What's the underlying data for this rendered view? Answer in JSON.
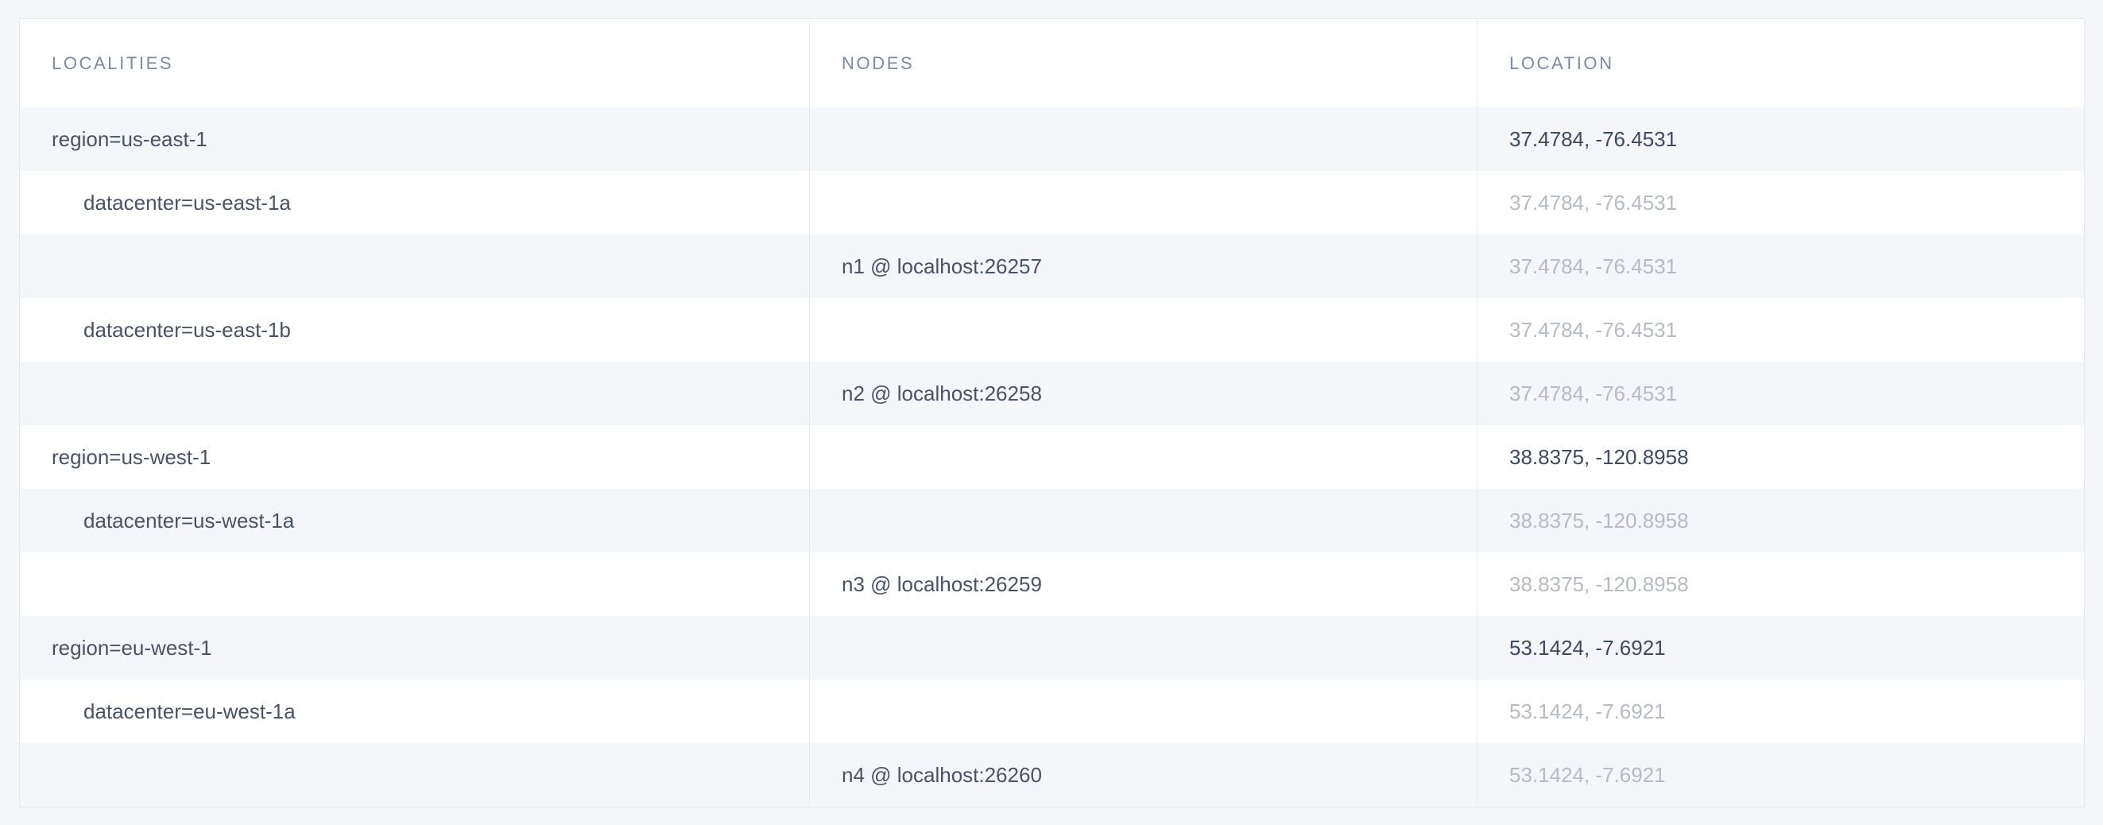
{
  "page": {
    "background": "#f4f6f9"
  },
  "colors": {
    "row_stripe": "#f4f6fa",
    "row_plain": "#ffffff",
    "table_border": "#e4e7ed",
    "column_separator": "#e8eaef",
    "header_text": "#7e89a6",
    "body_text": "#485366",
    "location_dark_text": "#3e4a61",
    "location_muted_text": "#b5bac4"
  },
  "table": {
    "columns": [
      {
        "key": "localities",
        "label": "Localities"
      },
      {
        "key": "nodes",
        "label": "Nodes"
      },
      {
        "key": "location",
        "label": "Location"
      }
    ],
    "rows": [
      {
        "type": "region",
        "locality": "region=us-east-1",
        "node": "",
        "location": "37.4784, -76.4531",
        "location_muted": false
      },
      {
        "type": "datacenter",
        "locality": "datacenter=us-east-1a",
        "node": "",
        "location": "37.4784, -76.4531",
        "location_muted": true
      },
      {
        "type": "node",
        "locality": "",
        "node": "n1 @ localhost:26257",
        "location": "37.4784, -76.4531",
        "location_muted": true
      },
      {
        "type": "datacenter",
        "locality": "datacenter=us-east-1b",
        "node": "",
        "location": "37.4784, -76.4531",
        "location_muted": true
      },
      {
        "type": "node",
        "locality": "",
        "node": "n2 @ localhost:26258",
        "location": "37.4784, -76.4531",
        "location_muted": true
      },
      {
        "type": "region",
        "locality": "region=us-west-1",
        "node": "",
        "location": "38.8375, -120.8958",
        "location_muted": false
      },
      {
        "type": "datacenter",
        "locality": "datacenter=us-west-1a",
        "node": "",
        "location": "38.8375, -120.8958",
        "location_muted": true
      },
      {
        "type": "node",
        "locality": "",
        "node": "n3 @ localhost:26259",
        "location": "38.8375, -120.8958",
        "location_muted": true
      },
      {
        "type": "region",
        "locality": "region=eu-west-1",
        "node": "",
        "location": "53.1424, -7.6921",
        "location_muted": false
      },
      {
        "type": "datacenter",
        "locality": "datacenter=eu-west-1a",
        "node": "",
        "location": "53.1424, -7.6921",
        "location_muted": true
      },
      {
        "type": "node",
        "locality": "",
        "node": "n4 @ localhost:26260",
        "location": "53.1424, -7.6921",
        "location_muted": true
      }
    ]
  }
}
